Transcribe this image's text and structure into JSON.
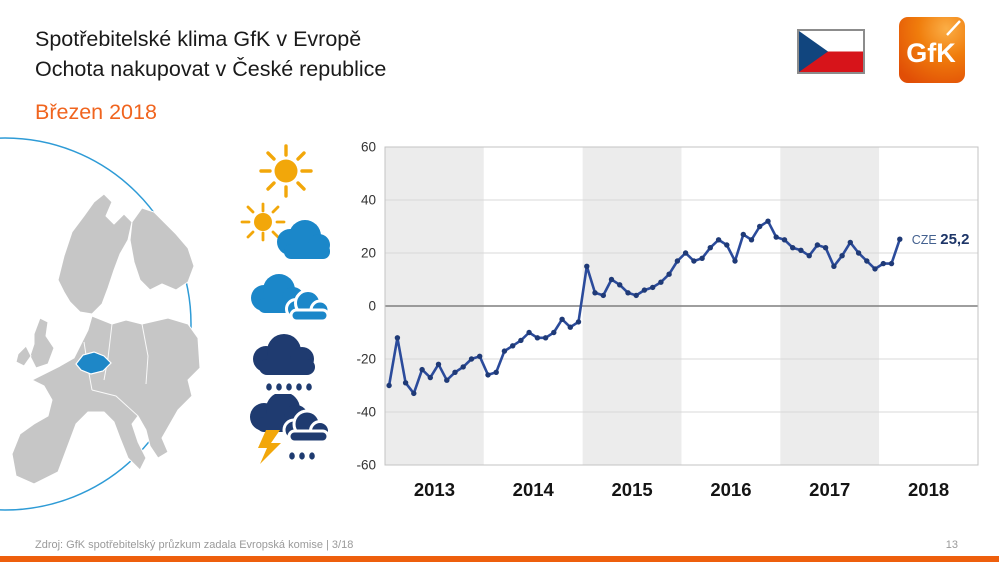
{
  "slide": {
    "title_line1": "Spotřebitelské klima GfK v Evropě",
    "title_line2": "Ochota nakupovat v České republice",
    "date_label": "Březen 2018"
  },
  "branding": {
    "flag": "czech-republic",
    "logo_text": "GfK",
    "logo_color": "#ee6105"
  },
  "weather": {
    "icons": [
      "sun",
      "sun-behind-cloud",
      "clouds",
      "rain-cloud",
      "thunderstorm-rain"
    ]
  },
  "map": {
    "highlighted_country": "CZE",
    "highlight_color": "#1e87c7",
    "land_color": "#c6c6c6",
    "circle_color": "#2e9bd6"
  },
  "chart_data": {
    "type": "line",
    "title": "",
    "xlabel": "",
    "ylabel": "",
    "ylim": [
      -60,
      60
    ],
    "yticks": [
      60,
      40,
      20,
      0,
      -20,
      -40,
      -60
    ],
    "x_years": [
      "2013",
      "2014",
      "2015",
      "2016",
      "2017",
      "2018"
    ],
    "grid": true,
    "band_color": "#ececec",
    "line_color": "#2b4b9b",
    "marker_color": "#1f3a77",
    "series_name": "CZE",
    "start_month": "2013-01",
    "end_month": "2018-03",
    "values": [
      -30,
      -12,
      -29,
      -33,
      -24,
      -27,
      -22,
      -28,
      -25,
      -23,
      -20,
      -19,
      -26,
      -25,
      -17,
      -15,
      -13,
      -10,
      -12,
      -12,
      -10,
      -5,
      -8,
      -6,
      15,
      5,
      4,
      10,
      8,
      5,
      4,
      6,
      7,
      9,
      12,
      17,
      20,
      17,
      18,
      22,
      25,
      23,
      17,
      27,
      25,
      30,
      32,
      26,
      25,
      22,
      21,
      19,
      23,
      22,
      15,
      19,
      24,
      20,
      17,
      14,
      16,
      16,
      25.2
    ],
    "end_label": {
      "prefix": "CZE",
      "value": "25,2"
    },
    "legend_position": "end-of-line"
  },
  "footer": {
    "source": "Zdroj: GfK spotřebitelský průzkum zadala Evropská komise | 3/18",
    "page_number": "13"
  },
  "colors": {
    "accent_orange": "#ee5f0d",
    "navy": "#1f3b70",
    "light_blue": "#1b87c9",
    "sun_yellow": "#f2a70a",
    "flag_red": "#d7141a",
    "flag_blue": "#11457e"
  }
}
